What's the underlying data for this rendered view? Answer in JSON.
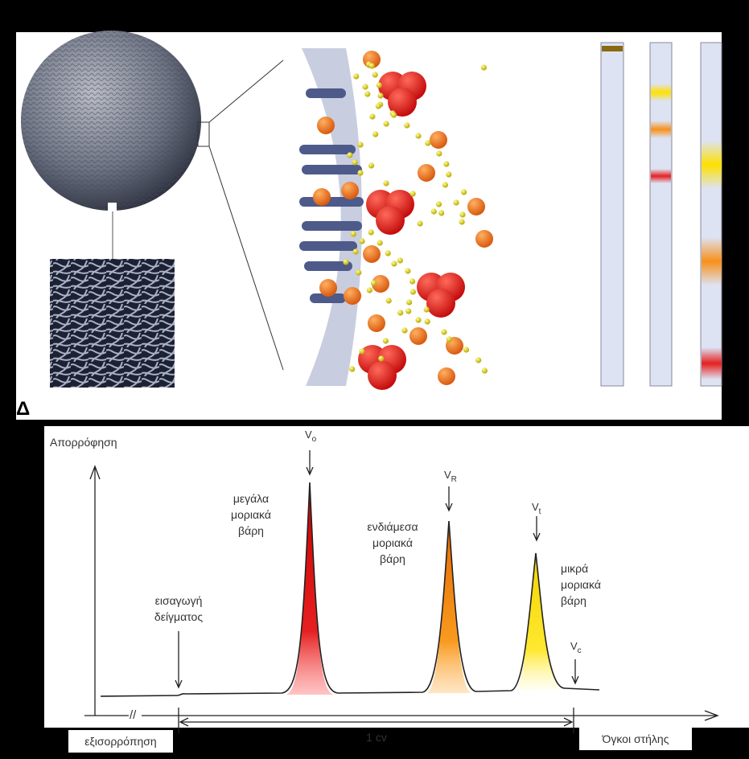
{
  "panel_label": "Δ",
  "chart": {
    "y_axis_label": "Απορρόφηση",
    "x_axis_label": "Όγκοι στήλης",
    "equilibration": "εξισορρόπηση",
    "axis_break": "//",
    "span": "1 cv",
    "injection": [
      "εισαγωγή",
      "δείγματος"
    ],
    "markers": [
      {
        "symbol": "V",
        "subscript": "o"
      },
      {
        "symbol": "V",
        "subscript": "R"
      },
      {
        "symbol": "V",
        "subscript": "t"
      },
      {
        "symbol": "V",
        "subscript": "c"
      }
    ],
    "peaks": [
      {
        "label": [
          "μεγάλα",
          "μοριακά",
          "βάρη"
        ]
      },
      {
        "label": [
          "ενδιάμεσα",
          "μοριακά",
          "βάρη"
        ]
      },
      {
        "label": [
          "μικρά",
          "μοριακά",
          "βάρη"
        ]
      }
    ]
  }
}
